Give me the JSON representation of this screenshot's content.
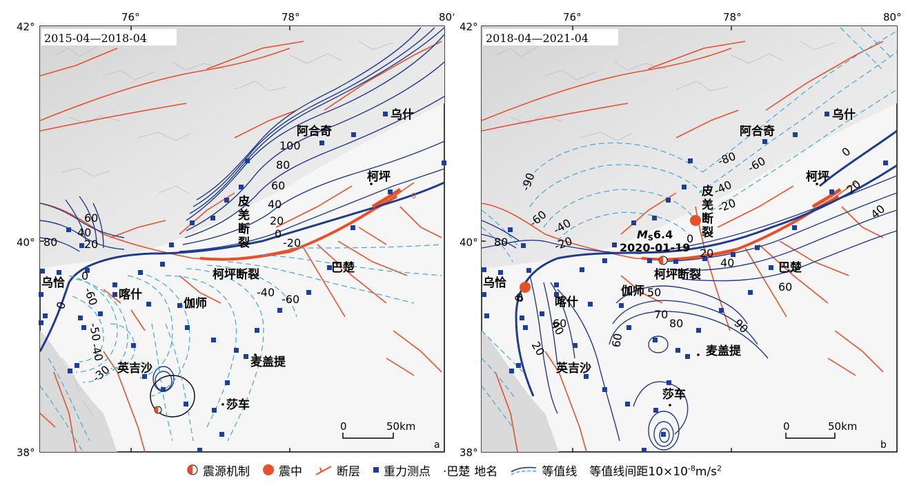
{
  "panel_a": {
    "date_label": "2015-04—2018-04",
    "panel_letter": "a",
    "lon_labels": [
      "76°",
      "78°",
      "80°"
    ],
    "lat_labels": [
      "42°",
      "40°",
      "38°"
    ],
    "scale": {
      "zero": "0",
      "end": "50km"
    },
    "places": {
      "wushi": "乌什",
      "aheqi": "阿合奇",
      "keping": "柯坪",
      "bachu": "巴楚",
      "wuqia": "乌恰",
      "kashi": "喀什",
      "jiashi": "伽师",
      "yingjisha": "英吉沙",
      "maigaiti": "麦盖提",
      "shache": "莎车"
    },
    "fault_names": {
      "piqiang": [
        "皮",
        "羌",
        "断",
        "裂"
      ],
      "keping_fault": "柯坪断裂"
    },
    "contour_labels": [
      "100",
      "80",
      "60",
      "40",
      "20",
      "0",
      "-20",
      "-40",
      "-60",
      "60",
      "40",
      "80",
      "20",
      "0",
      "-60",
      "-50",
      "-40",
      "-30",
      "0"
    ]
  },
  "panel_b": {
    "date_label": "2018-04—2021-04",
    "panel_letter": "b",
    "lon_labels": [
      "76°",
      "78°",
      "80°"
    ],
    "lat_labels": [
      "42°",
      "40°",
      "38°"
    ],
    "scale": {
      "zero": "0",
      "end": "50km"
    },
    "places": {
      "wushi": "乌什",
      "aheqi": "阿合奇",
      "keping": "柯坪",
      "bachu": "巴楚",
      "wuqia": "乌恰",
      "kashi": "喀什",
      "jiashi": "伽师",
      "yingjisha": "英吉沙",
      "maigaiti": "麦盖提",
      "shache": "莎车"
    },
    "fault_names": {
      "piqiang": [
        "皮",
        "羌",
        "断",
        "裂"
      ],
      "keping_fault": "柯坪断裂"
    },
    "event": {
      "magnitude_prefix": "M",
      "magnitude_sub": "S",
      "magnitude_value": "6.4",
      "date": "2020-01-19"
    },
    "contour_labels": [
      "-90",
      "-80",
      "-60",
      "-40",
      "-20",
      "0",
      "-60",
      "-40",
      "-20",
      "0",
      "20",
      "40",
      "0",
      "20",
      "40",
      "60",
      "80",
      "60",
      "50",
      "70",
      "80",
      "90",
      "60",
      "40",
      "20",
      "0"
    ]
  },
  "legend": {
    "focal_mechanism": "震源机制",
    "epicenter": "震中",
    "fault": "断层",
    "gravity_station": "重力测点",
    "place_example": "·巴楚",
    "place_name": "地名",
    "contour": "等值线",
    "contour_interval": "等值线间距10×10",
    "interval_exp": "-8",
    "interval_unit": "m/s",
    "interval_unit_exp": "2"
  },
  "colors": {
    "fault": "#e8502a",
    "positive_contour": "#1f3b8c",
    "negative_contour": "#3fa8d6",
    "station": "#1d3e9c",
    "epicenter": "#e8502a"
  }
}
